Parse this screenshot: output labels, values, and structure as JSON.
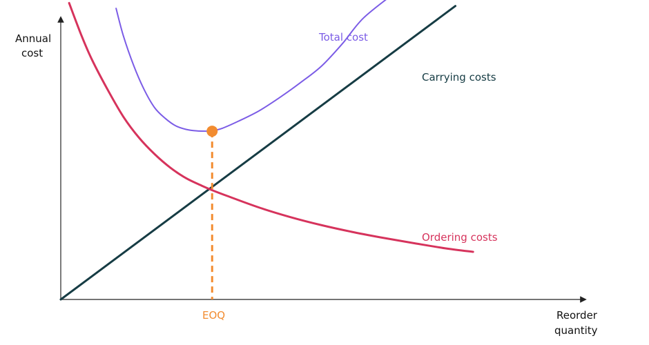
{
  "chart_data": {
    "type": "line",
    "xlabel": [
      "Reorder",
      "quantity"
    ],
    "ylabel": [
      "Annual",
      "cost"
    ],
    "ticks": false,
    "grid": false,
    "xlim": [
      0,
      100
    ],
    "ylim": [
      0,
      100
    ],
    "series": [
      {
        "name": "Total cost",
        "color": "#7B5CE6",
        "points": [
          [
            10.6,
            97.2
          ],
          [
            12,
            88
          ],
          [
            14,
            78
          ],
          [
            16,
            70
          ],
          [
            18,
            64
          ],
          [
            20,
            60.5
          ],
          [
            22,
            58
          ],
          [
            24,
            56.8
          ],
          [
            26,
            56.3
          ],
          [
            28,
            56.2
          ],
          [
            29,
            56.3
          ],
          [
            31,
            57.2
          ],
          [
            34,
            59.5
          ],
          [
            38,
            63
          ],
          [
            42,
            67.5
          ],
          [
            46,
            72.5
          ],
          [
            50,
            78
          ],
          [
            54,
            85.5
          ],
          [
            58,
            94
          ],
          [
            64.3,
            102.8
          ]
        ]
      },
      {
        "name": "Carrying costs",
        "color": "#163C44",
        "points": [
          [
            0,
            0
          ],
          [
            75.6,
            98
          ]
        ]
      },
      {
        "name": "Ordering costs",
        "color": "#D6335C",
        "points": [
          [
            1.6,
            99
          ],
          [
            4,
            88
          ],
          [
            6,
            80
          ],
          [
            9,
            70
          ],
          [
            12,
            61
          ],
          [
            15,
            54
          ],
          [
            18,
            48.5
          ],
          [
            21,
            44
          ],
          [
            24,
            40.5
          ],
          [
            27,
            38
          ],
          [
            29,
            36.5
          ],
          [
            32,
            34.5
          ],
          [
            38,
            30.7
          ],
          [
            44,
            27.5
          ],
          [
            50,
            24.8
          ],
          [
            56,
            22.5
          ],
          [
            62,
            20.5
          ],
          [
            68,
            18.7
          ],
          [
            74,
            17
          ],
          [
            79,
            15.9
          ]
        ]
      }
    ],
    "eoq": {
      "label": "EOQ",
      "x": 29,
      "total_cost": 56.2,
      "intersection_cost": 37,
      "color": "#F28C30"
    }
  }
}
